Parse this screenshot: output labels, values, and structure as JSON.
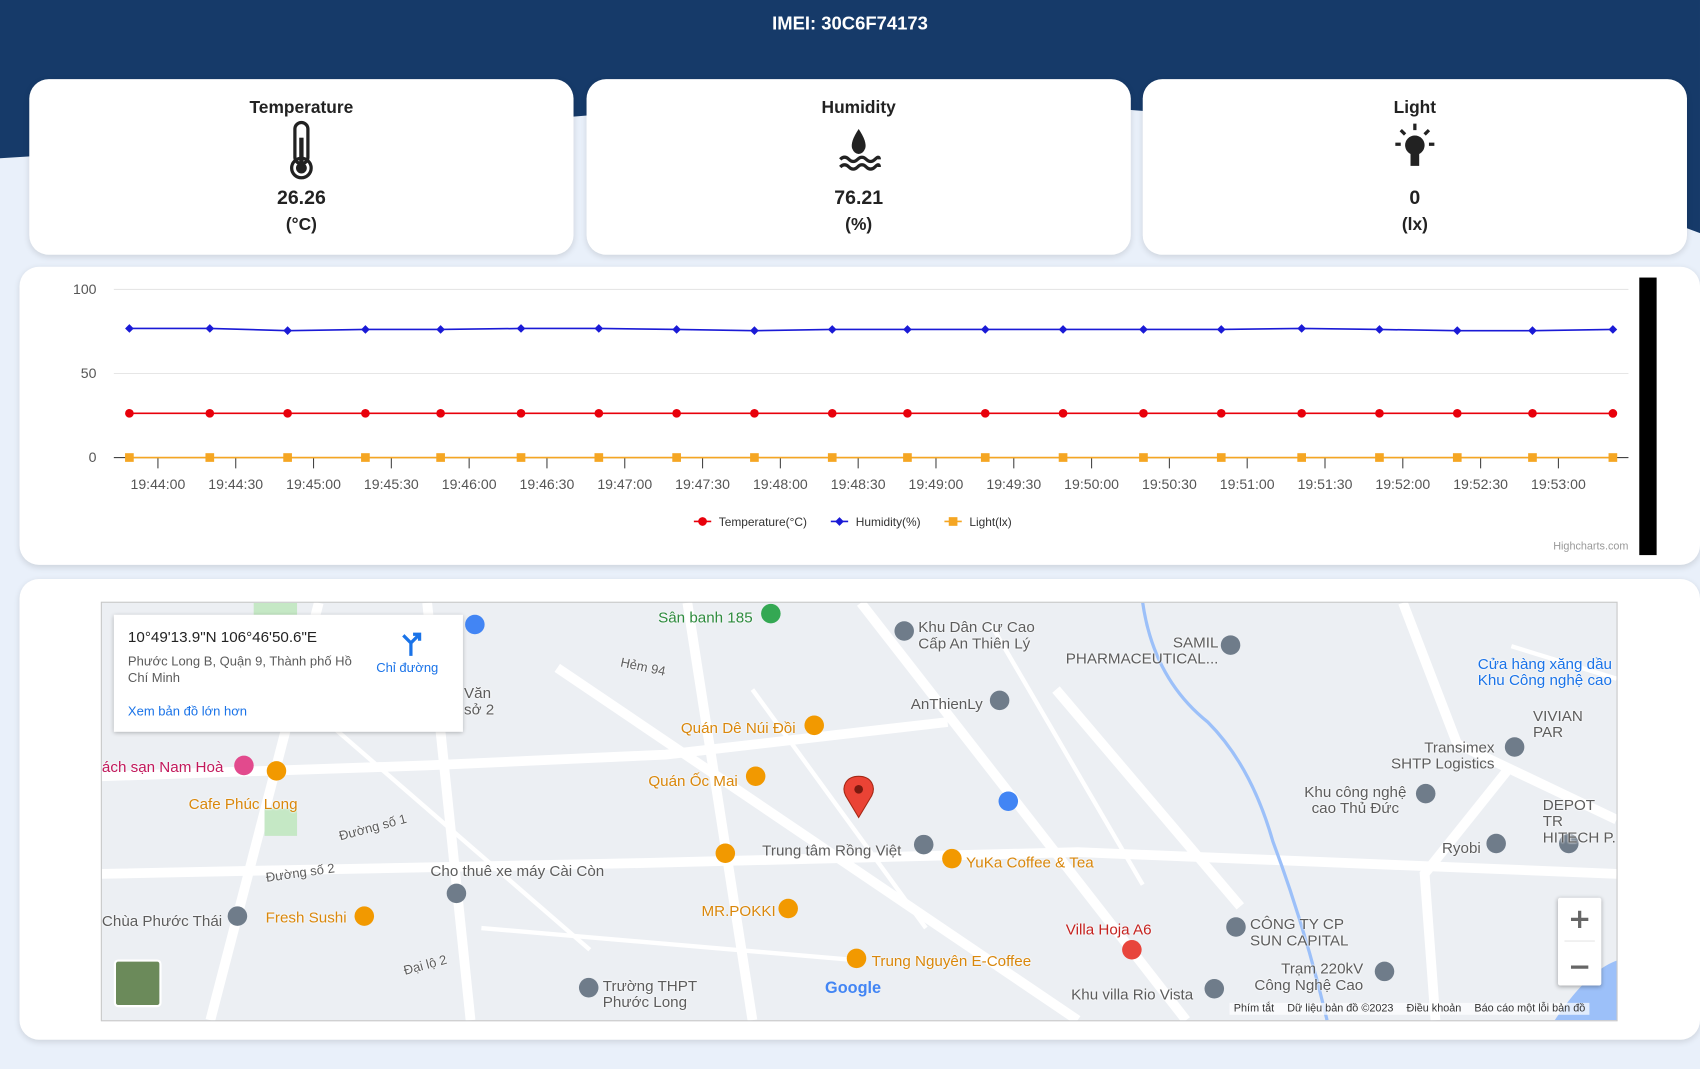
{
  "header": {
    "title": "IMEI: 30C6F74173"
  },
  "cards": [
    {
      "label": "Temperature",
      "value": "26.26",
      "unit": "(°C)"
    },
    {
      "label": "Humidity",
      "value": "76.21",
      "unit": "(%)"
    },
    {
      "label": "Light",
      "value": "0",
      "unit": "(lx)"
    }
  ],
  "chart_data": {
    "type": "line",
    "x": [
      71029,
      71060,
      71090,
      71120,
      71149,
      71180,
      71210,
      71240,
      71270,
      71300,
      71329,
      71359,
      71389,
      71420,
      71450,
      71481,
      71511,
      71541,
      71570,
      71601
    ],
    "xlim": [
      71023,
      71607
    ],
    "xticks": [
      {
        "value": 71040,
        "label": "19:44:00"
      },
      {
        "value": 71070,
        "label": "19:44:30"
      },
      {
        "value": 71100,
        "label": "19:45:00"
      },
      {
        "value": 71130,
        "label": "19:45:30"
      },
      {
        "value": 71160,
        "label": "19:46:00"
      },
      {
        "value": 71190,
        "label": "19:46:30"
      },
      {
        "value": 71220,
        "label": "19:47:00"
      },
      {
        "value": 71250,
        "label": "19:47:30"
      },
      {
        "value": 71280,
        "label": "19:48:00"
      },
      {
        "value": 71310,
        "label": "19:48:30"
      },
      {
        "value": 71340,
        "label": "19:49:00"
      },
      {
        "value": 71370,
        "label": "19:49:30"
      },
      {
        "value": 71400,
        "label": "19:50:00"
      },
      {
        "value": 71430,
        "label": "19:50:30"
      },
      {
        "value": 71460,
        "label": "19:51:00"
      },
      {
        "value": 71490,
        "label": "19:51:30"
      },
      {
        "value": 71520,
        "label": "19:52:00"
      },
      {
        "value": 71550,
        "label": "19:52:30"
      },
      {
        "value": 71580,
        "label": "19:53:00"
      }
    ],
    "ylim": [
      0,
      100
    ],
    "yticks": [
      0,
      50,
      100
    ],
    "grid": true,
    "series": [
      {
        "name": "Temperature(°C)",
        "color": "#e8000b",
        "marker": "circle",
        "values": [
          26.3,
          26.3,
          26.3,
          26.3,
          26.3,
          26.3,
          26.3,
          26.3,
          26.3,
          26.3,
          26.3,
          26.3,
          26.3,
          26.3,
          26.3,
          26.3,
          26.3,
          26.3,
          26.3,
          26.26
        ]
      },
      {
        "name": "Humidity(%)",
        "color": "#1a1ad6",
        "marker": "diamond",
        "values": [
          76.8,
          76.8,
          75.5,
          76.2,
          76.2,
          76.8,
          76.8,
          76.2,
          75.5,
          76.2,
          76.2,
          76.2,
          76.2,
          76.2,
          76.2,
          76.8,
          76.2,
          75.5,
          75.5,
          76.21
        ]
      },
      {
        "name": "Light(lx)",
        "color": "#f5a623",
        "marker": "square",
        "values": [
          0,
          0,
          0,
          0,
          0,
          0,
          0,
          0,
          0,
          0,
          0,
          0,
          0,
          0,
          0,
          0,
          0,
          0,
          0,
          0
        ]
      }
    ],
    "credit": "Highcharts.com"
  },
  "map": {
    "coords": "10°49'13.9\"N 106°46'50.6\"E",
    "address": "Phước Long B, Quận 9, Thành phố Hồ Chí Minh",
    "directions": "Chỉ đường",
    "larger": "Xem bản đồ lớn hơn",
    "labels": [
      "Sân banh 185",
      "Khu Dân Cư Cao\nCấp An Thiên Lý",
      "SAMIL\nPHARMACEUTICAL...",
      "Cửa hàng xăng dầu\nKhu Công nghệ cao",
      "VIVIAN PAR",
      "Transimex\nSHTP Logistics",
      "AnThienLy",
      "Quán Dê Núi Đồi",
      "Quán Ốc Mai",
      "Khu công nghệ\ncao Thủ Đức",
      "DEPOT TR\nHITECH P.",
      "Ryobi",
      "Trung tâm Rồng Việt",
      "YuKa Coffee & Tea",
      "Cho thuê xe máy Cài Còn",
      "MR.POKKI",
      "Villa Hoja A6",
      "CÔNG TY CP\nSUN CAPITAL",
      "Trạm 220kV\nCông Nghệ Cao",
      "Trung Nguyên E-Coffee",
      "Khu villa Rio Vista",
      "Trường THPT\nPhước Long",
      "Chùa Phước Thái",
      "Fresh Sushi",
      "Cafe Phúc Long",
      "ách sạn Nam Hoà",
      "Hẻm 94",
      "Đường số 1",
      "Đường số 2",
      "Đại lộ 2",
      "Văn\nsở 2"
    ],
    "logo": "Google",
    "footer": [
      "Phím tắt",
      "Dữ liệu bản đồ ©2023",
      "Điều khoản",
      "Báo cáo một lỗi bản đồ"
    ]
  }
}
